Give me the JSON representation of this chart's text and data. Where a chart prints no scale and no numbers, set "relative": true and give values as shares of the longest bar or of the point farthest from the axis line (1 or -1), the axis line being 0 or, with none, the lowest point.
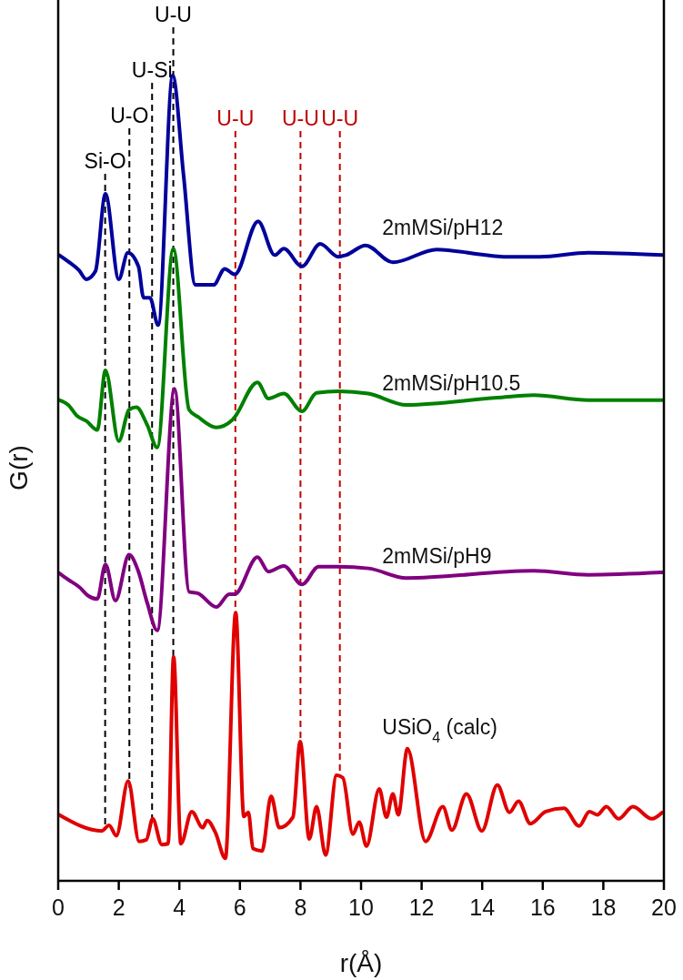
{
  "chart_data": {
    "type": "line",
    "relative": true,
    "xlabel": "r(Å)",
    "ylabel": "G(r)",
    "xlim": [
      0,
      20
    ],
    "xticks": [
      0,
      2,
      4,
      6,
      8,
      10,
      12,
      14,
      16,
      18,
      20
    ],
    "tick_labels": "x",
    "grid": false,
    "line_style": "solid",
    "series": [
      {
        "name": "2mMSi/pH12",
        "color": "#00009b",
        "x": [
          0.03,
          0.33,
          0.69,
          0.93,
          1.23,
          1.56,
          2.0,
          2.3,
          2.65,
          2.82,
          3.03,
          3.3,
          3.78,
          4.14,
          4.53,
          5.13,
          5.5,
          5.83,
          6.6,
          7.15,
          7.45,
          8.05,
          8.65,
          9.25,
          9.5,
          10.15,
          11.05,
          12.5,
          14.1,
          14.7,
          15.9,
          17.5,
          19.95
        ],
        "values": [
          0.777,
          0.769,
          0.758,
          0.747,
          0.757,
          0.853,
          0.747,
          0.78,
          0.763,
          0.724,
          0.724,
          0.69,
          1.0,
          0.876,
          0.74,
          0.74,
          0.76,
          0.753,
          0.819,
          0.777,
          0.785,
          0.763,
          0.791,
          0.775,
          0.777,
          0.789,
          0.768,
          0.784,
          0.777,
          0.775,
          0.775,
          0.78,
          0.777
        ]
      },
      {
        "name": "2mMSi/pH10.5",
        "color": "#008000",
        "x": [
          0.03,
          0.33,
          0.63,
          0.93,
          1.29,
          1.56,
          2.0,
          2.34,
          2.58,
          2.94,
          3.27,
          3.8,
          4.32,
          4.62,
          5.22,
          5.74,
          5.83,
          6.58,
          6.94,
          7.45,
          8.05,
          8.53,
          9.25,
          10.24,
          11.5,
          14.5,
          15.7,
          17.5,
          19.95
        ],
        "values": [
          0.597,
          0.591,
          0.577,
          0.571,
          0.56,
          0.634,
          0.546,
          0.585,
          0.588,
          0.566,
          0.538,
          0.785,
          0.585,
          0.576,
          0.563,
          0.572,
          0.576,
          0.619,
          0.599,
          0.605,
          0.583,
          0.606,
          0.608,
          0.605,
          0.591,
          0.6,
          0.603,
          0.597,
          0.597
        ]
      },
      {
        "name": "2mMSi/pH9",
        "color": "#800080",
        "x": [
          0.03,
          0.33,
          0.69,
          0.99,
          1.29,
          1.56,
          1.89,
          2.34,
          2.64,
          2.94,
          3.27,
          3.84,
          4.32,
          4.62,
          5.22,
          5.65,
          5.83,
          6.58,
          6.94,
          7.45,
          8.05,
          8.6,
          9.25,
          10.24,
          11.5,
          15.7,
          17.5,
          19.95
        ],
        "values": [
          0.382,
          0.374,
          0.365,
          0.354,
          0.35,
          0.393,
          0.348,
          0.405,
          0.385,
          0.345,
          0.311,
          0.611,
          0.359,
          0.357,
          0.34,
          0.356,
          0.356,
          0.402,
          0.384,
          0.391,
          0.368,
          0.39,
          0.39,
          0.388,
          0.376,
          0.385,
          0.38,
          0.383
        ]
      },
      {
        "name": "USiO$_{4}$ (calc)",
        "color": "#e00000",
        "x": [
          0.03,
          1.44,
          1.68,
          1.92,
          2.31,
          2.67,
          2.91,
          3.12,
          3.42,
          3.63,
          3.81,
          4.05,
          4.41,
          4.77,
          4.92,
          5.19,
          5.52,
          5.86,
          6.13,
          6.28,
          6.43,
          6.73,
          7.03,
          7.3,
          7.75,
          7.99,
          8.29,
          8.53,
          8.83,
          9.19,
          9.4,
          9.73,
          9.94,
          10.18,
          10.6,
          10.84,
          11.05,
          11.23,
          11.53,
          12.13,
          12.7,
          13.0,
          13.48,
          13.99,
          14.5,
          14.9,
          15.2,
          15.59,
          16.1,
          16.7,
          17.2,
          17.54,
          17.8,
          18.1,
          18.5,
          18.98,
          19.6,
          19.95
        ],
        "values": [
          0.082,
          0.062,
          0.069,
          0.056,
          0.124,
          0.049,
          0.051,
          0.077,
          0.045,
          0.046,
          0.278,
          0.046,
          0.086,
          0.066,
          0.075,
          0.06,
          0.028,
          0.333,
          0.08,
          0.085,
          0.04,
          0.037,
          0.105,
          0.066,
          0.079,
          0.173,
          0.052,
          0.092,
          0.032,
          0.131,
          0.128,
          0.058,
          0.073,
          0.043,
          0.114,
          0.079,
          0.108,
          0.082,
          0.164,
          0.049,
          0.092,
          0.063,
          0.108,
          0.062,
          0.119,
          0.085,
          0.099,
          0.071,
          0.086,
          0.09,
          0.068,
          0.086,
          0.082,
          0.092,
          0.077,
          0.092,
          0.077,
          0.085
        ]
      }
    ],
    "ref_lines": [
      {
        "axis": "x",
        "value": 1.55,
        "label": "Si-O",
        "color": "#000000",
        "line_style": "dashed"
      },
      {
        "axis": "x",
        "value": 2.35,
        "label": "U-O",
        "color": "#000000",
        "line_style": "dashed"
      },
      {
        "axis": "x",
        "value": 3.1,
        "label": "U-Si",
        "color": "#000000",
        "line_style": "dashed"
      },
      {
        "axis": "x",
        "value": 3.8,
        "label": "U-U",
        "color": "#000000",
        "line_style": "dashed"
      },
      {
        "axis": "x",
        "value": 5.85,
        "label": "U-U",
        "color": "#c00000",
        "line_style": "dashed"
      },
      {
        "axis": "x",
        "value": 8.0,
        "label": "U-U",
        "color": "#c00000",
        "line_style": "dashed"
      },
      {
        "axis": "x",
        "value": 9.3,
        "label": "U-U",
        "color": "#c00000",
        "line_style": "dashed"
      }
    ]
  }
}
